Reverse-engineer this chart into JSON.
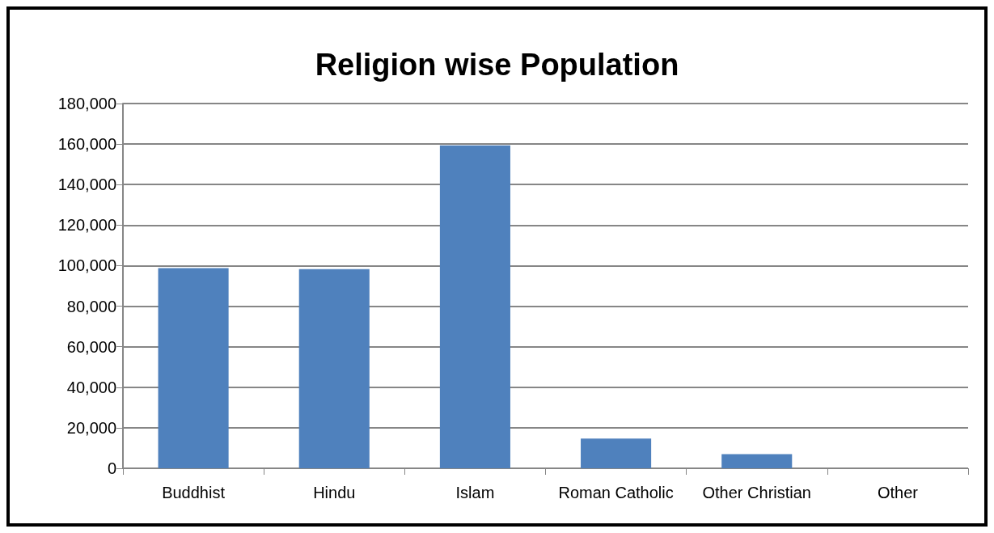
{
  "chart_data": {
    "type": "bar",
    "title": "Religion wise Population",
    "categories": [
      "Buddhist",
      "Hindu",
      "Islam",
      "Roman Catholic",
      "Other Christian",
      "Other"
    ],
    "values": [
      98800,
      98300,
      159300,
      14700,
      7000,
      0
    ],
    "color": "#4f81bd",
    "ylim": [
      0,
      180000
    ],
    "yticks": [
      0,
      {
        "value": 20000,
        "label": "20,000"
      },
      {
        "value": 40000,
        "label": "40,000"
      },
      {
        "value": 60000,
        "label": "60,000"
      },
      {
        "value": 80000,
        "label": "80,000"
      },
      {
        "value": 100000,
        "label": "100,000"
      },
      {
        "value": 120000,
        "label": "120,000"
      },
      {
        "value": 140000,
        "label": "140,000"
      },
      {
        "value": 160000,
        "label": "160,000"
      },
      {
        "value": 180000,
        "label": "180,000"
      }
    ],
    "grid": "y"
  }
}
